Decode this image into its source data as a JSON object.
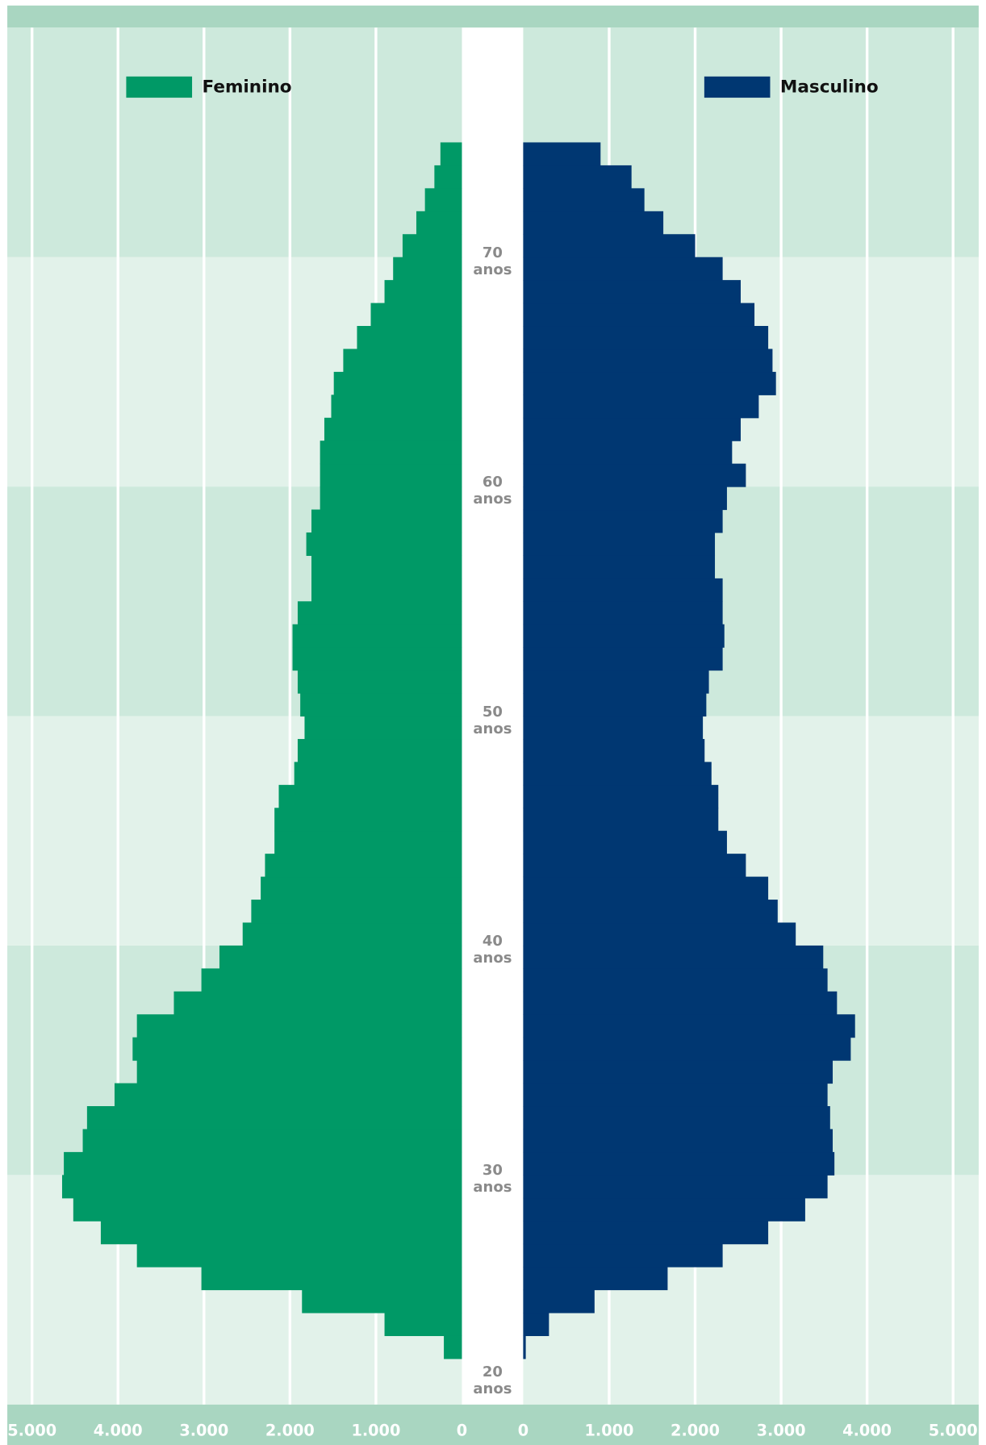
{
  "chart_data": {
    "type": "pyramid",
    "x": [
      22,
      23,
      24,
      25,
      26,
      27,
      28,
      29,
      30,
      31,
      32,
      33,
      34,
      35,
      36,
      37,
      38,
      39,
      40,
      41,
      42,
      43,
      44,
      45,
      46,
      47,
      48,
      49,
      50,
      51,
      52,
      53,
      54,
      55,
      56,
      57,
      58,
      59,
      60,
      61,
      62,
      63,
      64,
      65,
      66,
      67,
      68,
      69,
      70,
      71,
      72,
      73,
      74
    ],
    "series": [
      {
        "name": "Feminino",
        "color": "#009966",
        "side": "left",
        "values": [
          210,
          900,
          1860,
          3030,
          3780,
          4200,
          4520,
          4650,
          4630,
          4410,
          4360,
          4040,
          3780,
          3830,
          3780,
          3350,
          3030,
          2820,
          2550,
          2450,
          2340,
          2290,
          2180,
          2180,
          2130,
          1950,
          1910,
          1830,
          1880,
          1910,
          1970,
          1970,
          1910,
          1750,
          1750,
          1810,
          1750,
          1650,
          1650,
          1650,
          1600,
          1520,
          1490,
          1380,
          1220,
          1060,
          900,
          800,
          690,
          530,
          430,
          320,
          250
        ]
      },
      {
        "name": "Masculino",
        "color": "#003772",
        "side": "right",
        "values": [
          30,
          300,
          830,
          1680,
          2320,
          2850,
          3280,
          3540,
          3620,
          3600,
          3570,
          3540,
          3600,
          3810,
          3860,
          3650,
          3540,
          3490,
          3170,
          2960,
          2850,
          2590,
          2370,
          2270,
          2270,
          2190,
          2110,
          2090,
          2130,
          2160,
          2320,
          2340,
          2320,
          2320,
          2230,
          2230,
          2320,
          2370,
          2590,
          2430,
          2530,
          2740,
          2940,
          2900,
          2850,
          2690,
          2530,
          2320,
          2000,
          1630,
          1410,
          1260,
          900
        ]
      }
    ],
    "xlim": [
      0,
      5000
    ],
    "xticks": [
      0,
      {
        "value": 1000,
        "label": "1.000"
      },
      {
        "value": 2000,
        "label": "2.000"
      },
      {
        "value": 3000,
        "label": "3.000"
      },
      {
        "value": 4000,
        "label": "4.000"
      },
      {
        "value": 5000,
        "label": "5.000"
      }
    ],
    "ylim": [
      20,
      80
    ],
    "yticks": [
      {
        "value": 20,
        "label": "20 anos"
      },
      {
        "value": 30,
        "label": "30 anos"
      },
      {
        "value": 40,
        "label": "40 anos"
      },
      {
        "value": 50,
        "label": "50 anos"
      },
      {
        "value": 60,
        "label": "60 anos"
      },
      {
        "value": 70,
        "label": "70 anos"
      }
    ],
    "grid": true
  }
}
